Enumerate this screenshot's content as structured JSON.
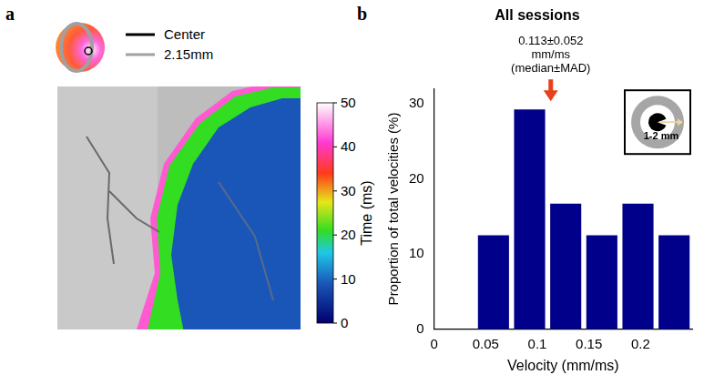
{
  "panel_letters": [
    "a",
    "b"
  ],
  "panel_a": {
    "key": [
      {
        "label": "Center",
        "color": "#000000"
      },
      {
        "label": "2.15mm",
        "color": "#a0a0a0"
      }
    ],
    "colorbar": {
      "title": "Time (ms)",
      "range": [
        0,
        50
      ],
      "ticks": [
        0,
        10,
        20,
        30,
        40,
        50
      ]
    }
  },
  "chart_data": {
    "type": "bar",
    "title": "All sessions",
    "x_label": "Velocity (mm/ms)",
    "y_label": "Proportion of total velocities (%)",
    "bins": [
      0.04,
      0.075,
      0.11,
      0.145,
      0.18,
      0.215,
      0.25
    ],
    "values": [
      12.5,
      29.2,
      16.7,
      12.5,
      16.7,
      12.5
    ],
    "color": "#00008b",
    "xlim": [
      0,
      0.25
    ],
    "xticks": [
      0,
      0.05,
      0.1,
      0.15,
      0.2
    ],
    "ylim": [
      0,
      32
    ],
    "yticks": [
      0,
      10,
      20,
      30
    ],
    "grid": false,
    "annotations": [
      {
        "text": [
          "0.113±0.052",
          "mm/ms",
          "(median±MAD)"
        ],
        "x": 0.113,
        "color": "#e8401c"
      }
    ],
    "inset_label": "1-2 mm"
  }
}
